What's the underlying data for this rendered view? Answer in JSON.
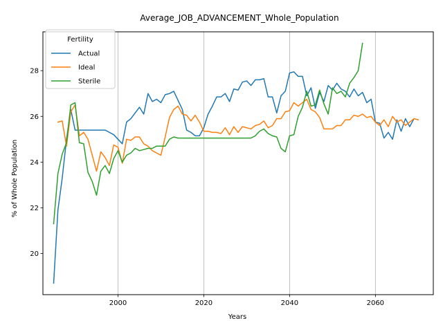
{
  "chart_data": {
    "type": "line",
    "title": "Average_JOB_ADVANCEMENT_Whole_Population",
    "xlabel": "Years",
    "ylabel": "% of Whole Population",
    "xlim": [
      1982.5,
      2073.5
    ],
    "ylim": [
      18.2,
      29.7
    ],
    "x_ticks": [
      2000,
      2020,
      2040,
      2060
    ],
    "y_ticks": [
      20,
      22,
      24,
      26,
      28
    ],
    "grid": "x-only",
    "legend": {
      "title": "Fertility",
      "placement": "top-left"
    },
    "series": [
      {
        "name": "Actual",
        "color": "#1f77b4",
        "x": [
          1985,
          1986,
          1987,
          1988,
          1989,
          1990,
          1991,
          1992,
          1993,
          1994,
          1995,
          1996,
          1997,
          1998,
          1999,
          2000,
          2001,
          2002,
          2003,
          2004,
          2005,
          2006,
          2007,
          2008,
          2009,
          2010,
          2011,
          2012,
          2013,
          2014,
          2015,
          2016,
          2017,
          2018,
          2019,
          2020,
          2021,
          2022,
          2023,
          2024,
          2025,
          2026,
          2027,
          2028,
          2029,
          2030,
          2031,
          2032,
          2033,
          2034,
          2035,
          2036,
          2037,
          2038,
          2039,
          2040,
          2041,
          2042,
          2043,
          2044,
          2045,
          2046,
          2047,
          2048,
          2049,
          2050,
          2051,
          2052,
          2053,
          2054,
          2055,
          2056,
          2057,
          2058,
          2059,
          2060,
          2061,
          2062,
          2063,
          2064,
          2065,
          2066,
          2067,
          2068,
          2069,
          2070
        ],
        "values": [
          18.7,
          21.9,
          23.3,
          25.0,
          26.3,
          25.4,
          25.4,
          25.4,
          25.4,
          25.4,
          25.4,
          25.4,
          25.4,
          25.3,
          25.2,
          25.0,
          24.8,
          25.75,
          25.9,
          26.15,
          26.4,
          26.1,
          27.0,
          26.65,
          26.75,
          26.6,
          26.95,
          27.0,
          27.1,
          26.7,
          26.3,
          25.4,
          25.3,
          25.15,
          25.15,
          25.5,
          26.1,
          26.45,
          26.85,
          26.85,
          27.0,
          26.65,
          27.2,
          27.15,
          27.5,
          27.55,
          27.35,
          27.6,
          27.6,
          27.65,
          26.85,
          26.85,
          26.15,
          26.9,
          27.1,
          27.9,
          27.95,
          27.75,
          27.75,
          26.9,
          27.25,
          26.35,
          27.05,
          26.65,
          27.35,
          27.15,
          27.45,
          27.2,
          27.1,
          26.85,
          27.2,
          26.9,
          27.05,
          26.6,
          26.75,
          25.75,
          25.7,
          25.05,
          25.3,
          25.0,
          25.85,
          25.35,
          25.9,
          25.55,
          25.9,
          25.85
        ]
      },
      {
        "name": "Ideal",
        "color": "#ff7f0e",
        "x": [
          1985,
          1986,
          1987,
          1988,
          1989,
          1990,
          1991,
          1992,
          1993,
          1994,
          1995,
          1996,
          1997,
          1998,
          1999,
          2000,
          2001,
          2002,
          2003,
          2004,
          2005,
          2006,
          2007,
          2008,
          2009,
          2010,
          2011,
          2012,
          2013,
          2014,
          2015,
          2016,
          2017,
          2018,
          2019,
          2020,
          2021,
          2022,
          2023,
          2024,
          2025,
          2026,
          2027,
          2028,
          2029,
          2030,
          2031,
          2032,
          2033,
          2034,
          2035,
          2036,
          2037,
          2038,
          2039,
          2040,
          2041,
          2042,
          2043,
          2044,
          2045,
          2046,
          2047,
          2048,
          2049,
          2050,
          2051,
          2052,
          2053,
          2054,
          2055,
          2056,
          2057,
          2058,
          2059,
          2060,
          2061,
          2062,
          2063,
          2064,
          2065,
          2066,
          2067,
          2068,
          2069,
          2070
        ],
        "values": [
          null,
          25.75,
          25.8,
          24.7,
          26.2,
          26.5,
          25.15,
          25.3,
          25.0,
          24.3,
          23.6,
          24.45,
          24.2,
          23.85,
          24.75,
          24.65,
          23.95,
          25.0,
          24.95,
          25.1,
          25.1,
          24.8,
          24.7,
          24.5,
          24.4,
          24.3,
          25.1,
          25.95,
          26.3,
          26.45,
          26.1,
          26.05,
          25.8,
          26.05,
          25.75,
          25.35,
          25.35,
          25.3,
          25.3,
          25.25,
          25.5,
          25.2,
          25.55,
          25.3,
          25.55,
          25.5,
          25.45,
          25.6,
          25.65,
          25.8,
          25.5,
          25.6,
          25.9,
          25.9,
          26.2,
          26.25,
          26.6,
          26.45,
          26.6,
          26.75,
          26.3,
          26.2,
          25.95,
          25.45,
          25.45,
          25.45,
          25.6,
          25.6,
          25.85,
          25.85,
          26.05,
          26.0,
          26.1,
          25.95,
          26.0,
          25.75,
          25.6,
          25.85,
          25.55,
          26.0,
          25.75,
          25.85,
          25.6,
          25.75,
          25.9,
          25.85
        ]
      },
      {
        "name": "Sterile",
        "color": "#2ca02c",
        "x": [
          1985,
          1986,
          1987,
          1988,
          1989,
          1990,
          1991,
          1992,
          1993,
          1994,
          1995,
          1996,
          1997,
          1998,
          1999,
          2000,
          2001,
          2002,
          2003,
          2004,
          2005,
          2006,
          2007,
          2008,
          2009,
          2010,
          2011,
          2012,
          2013,
          2014,
          2015,
          2016,
          2017,
          2018,
          2019,
          2020,
          2021,
          2022,
          2023,
          2024,
          2025,
          2026,
          2027,
          2028,
          2029,
          2030,
          2031,
          2032,
          2033,
          2034,
          2035,
          2036,
          2037,
          2038,
          2039,
          2040,
          2041,
          2042,
          2043,
          2044,
          2045,
          2046,
          2047,
          2048,
          2049,
          2050,
          2051,
          2052,
          2053,
          2054,
          2055,
          2056,
          2057
        ],
        "values": [
          21.3,
          23.5,
          24.35,
          24.85,
          26.5,
          26.6,
          24.85,
          24.8,
          23.55,
          23.15,
          22.55,
          23.6,
          23.85,
          23.5,
          24.15,
          24.5,
          24.0,
          24.3,
          24.4,
          24.6,
          24.5,
          24.55,
          24.6,
          24.6,
          24.7,
          24.7,
          24.7,
          25.0,
          25.1,
          25.05,
          25.05,
          25.05,
          25.05,
          25.05,
          25.05,
          25.05,
          25.05,
          25.05,
          25.05,
          25.05,
          25.05,
          25.05,
          25.05,
          25.05,
          25.05,
          25.05,
          25.05,
          25.15,
          25.35,
          25.45,
          25.25,
          25.15,
          25.1,
          24.6,
          24.45,
          25.15,
          25.2,
          26.0,
          26.4,
          27.1,
          26.45,
          26.5,
          27.15,
          26.55,
          26.1,
          27.25,
          27.0,
          27.1,
          26.85,
          27.45,
          27.7,
          28.0,
          29.2
        ]
      }
    ]
  }
}
